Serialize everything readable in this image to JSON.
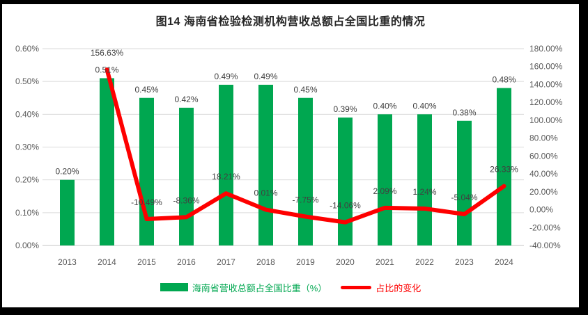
{
  "frame": {
    "background_color": "#000000",
    "panel_color": "#ffffff"
  },
  "chart_data": {
    "type": "combo-bar-line",
    "title": "图14 海南省检验检测机构营收总额占全国比重的情况",
    "categories": [
      "2013",
      "2014",
      "2015",
      "2016",
      "2017",
      "2018",
      "2019",
      "2020",
      "2021",
      "2022",
      "2023",
      "2024"
    ],
    "series": [
      {
        "name": "海南省营收总额占全国比重（%）",
        "type": "bar",
        "axis": "left",
        "color": "#00A750",
        "values": [
          0.2,
          0.51,
          0.45,
          0.42,
          0.49,
          0.49,
          0.45,
          0.39,
          0.4,
          0.4,
          0.38,
          0.48
        ],
        "labels": [
          "0.20%",
          "0.51%",
          "0.45%",
          "0.42%",
          "0.49%",
          "0.49%",
          "0.45%",
          "0.39%",
          "0.40%",
          "0.40%",
          "0.38%",
          "0.48%"
        ]
      },
      {
        "name": "占比的变化",
        "type": "line",
        "axis": "right",
        "color": "#FE0000",
        "values": [
          null,
          156.63,
          -10.49,
          -8.36,
          18.21,
          0.01,
          -7.75,
          -14.06,
          2.09,
          1.24,
          -5.04,
          26.33
        ],
        "labels": [
          null,
          "156.63%",
          "-10.49%",
          "-8.36%",
          "18.21%",
          "0.01%",
          "-7.75%",
          "-14.06%",
          "2.09%",
          "1.24%",
          "-5.04%",
          "26.33%"
        ]
      }
    ],
    "left_axis": {
      "min": 0,
      "max": 0.6,
      "tick_values": [
        0,
        0.1,
        0.2,
        0.3,
        0.4,
        0.5,
        0.6
      ],
      "ticks": [
        "0.00%",
        "0.10%",
        "0.20%",
        "0.30%",
        "0.40%",
        "0.50%",
        "0.60%"
      ]
    },
    "right_axis": {
      "min": -40,
      "max": 180,
      "tick_values": [
        -40,
        -20,
        0,
        20,
        40,
        60,
        80,
        100,
        120,
        140,
        160,
        180
      ],
      "ticks": [
        "-40.00%",
        "-20.00%",
        "0.00%",
        "20.00%",
        "40.00%",
        "60.00%",
        "80.00%",
        "100.00%",
        "120.00%",
        "140.00%",
        "160.00%",
        "180.00%"
      ]
    },
    "grid": true,
    "gridline_color": "#D9D9D9",
    "axis_line_color": "#C6C6C6",
    "data_label_color": "#404040",
    "axis_label_color": "#595959",
    "legend_position": "bottom"
  },
  "legend": {
    "bar_label": "海南省营收总额占全国比重（%）",
    "line_label": "占比的变化"
  }
}
